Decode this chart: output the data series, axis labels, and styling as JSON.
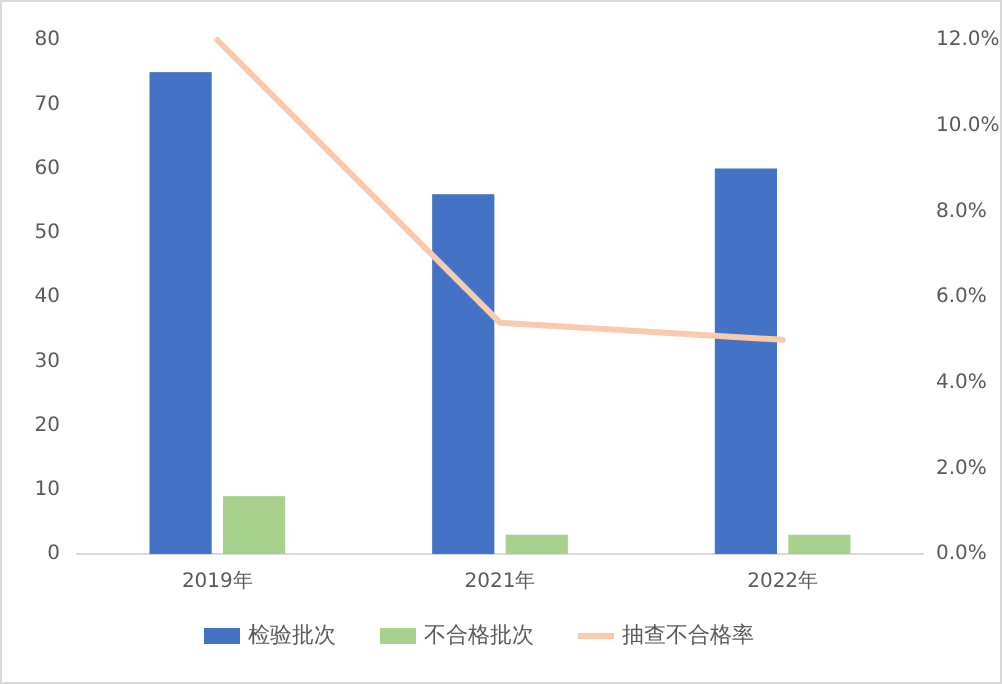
{
  "chart_data": {
    "type": "bar",
    "categories": [
      "2019年",
      "2021年",
      "2022年"
    ],
    "series": [
      {
        "name": "检验批次",
        "color": "#4472c4",
        "values": [
          75,
          56,
          60
        ]
      },
      {
        "name": "不合格批次",
        "color": "#a9d18e",
        "values": [
          9,
          3,
          3
        ]
      },
      {
        "name": "抽查不合格率",
        "type": "line",
        "axis": "y2",
        "color": "#f8cbad",
        "values": [
          12.0,
          5.4,
          5.0
        ]
      }
    ],
    "ylim": [
      0,
      80
    ],
    "yticks": [
      0,
      10,
      20,
      30,
      40,
      50,
      60,
      70,
      80
    ],
    "y2lim": [
      0,
      12
    ],
    "y2ticks": [
      {
        "value": 0,
        "label": "0.0%"
      },
      {
        "value": 2,
        "label": "2.0%"
      },
      {
        "value": 4,
        "label": "4.0%"
      },
      {
        "value": 6,
        "label": "6.0%"
      },
      {
        "value": 8,
        "label": "8.0%"
      },
      {
        "value": 10,
        "label": "10.0%"
      },
      {
        "value": 12,
        "label": "12.0%"
      }
    ],
    "grid": false,
    "legend": "bottom"
  }
}
